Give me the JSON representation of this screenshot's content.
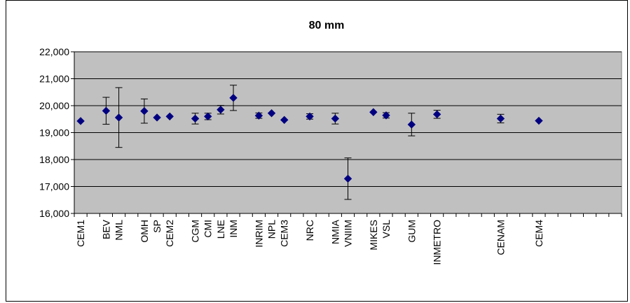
{
  "chart_data": {
    "type": "scatter",
    "title": "80 mm",
    "xlabel": "",
    "ylabel": "",
    "ylim": [
      16000,
      22000
    ],
    "yticks": [
      16000,
      17000,
      18000,
      19000,
      20000,
      21000,
      22000
    ],
    "ytick_labels": [
      "16,000",
      "17,000",
      "18,000",
      "19,000",
      "20,000",
      "21,000",
      "22,000"
    ],
    "grid": true,
    "legend": "none",
    "marker_color": "#000080",
    "plot_bg": "#c0c0c0",
    "slot_count": 43,
    "points": [
      {
        "label": "CEM1",
        "slot": 0,
        "y": 19430,
        "err": 0
      },
      {
        "label": "BEV",
        "slot": 2,
        "y": 19810,
        "err": 500
      },
      {
        "label": "NML",
        "slot": 3,
        "y": 19560,
        "err": 1110
      },
      {
        "label": "OMH",
        "slot": 5,
        "y": 19800,
        "err": 450
      },
      {
        "label": "SP",
        "slot": 6,
        "y": 19560,
        "err": 0
      },
      {
        "label": "CEM2",
        "slot": 7,
        "y": 19600,
        "err": 0
      },
      {
        "label": "CGM",
        "slot": 9,
        "y": 19520,
        "err": 200
      },
      {
        "label": "CMI",
        "slot": 10,
        "y": 19600,
        "err": 120
      },
      {
        "label": "LNE",
        "slot": 11,
        "y": 19850,
        "err": 160
      },
      {
        "label": "INM",
        "slot": 12,
        "y": 20290,
        "err": 470
      },
      {
        "label": "INRIM",
        "slot": 14,
        "y": 19630,
        "err": 100
      },
      {
        "label": "NPL",
        "slot": 15,
        "y": 19720,
        "err": 0
      },
      {
        "label": "CEM3",
        "slot": 16,
        "y": 19470,
        "err": 0
      },
      {
        "label": "NRC",
        "slot": 18,
        "y": 19600,
        "err": 100
      },
      {
        "label": "NMIA",
        "slot": 20,
        "y": 19520,
        "err": 200
      },
      {
        "label": "VNIIM",
        "slot": 21,
        "y": 17290,
        "err": 770
      },
      {
        "label": "MIKES",
        "slot": 23,
        "y": 19760,
        "err": 0
      },
      {
        "label": "VSL",
        "slot": 24,
        "y": 19640,
        "err": 100
      },
      {
        "label": "GUM",
        "slot": 26,
        "y": 19300,
        "err": 420
      },
      {
        "label": "INMETRO",
        "slot": 28,
        "y": 19680,
        "err": 150
      },
      {
        "label": "CENAM",
        "slot": 33,
        "y": 19520,
        "err": 160
      },
      {
        "label": "CEM4",
        "slot": 36,
        "y": 19440,
        "err": 0
      }
    ]
  }
}
